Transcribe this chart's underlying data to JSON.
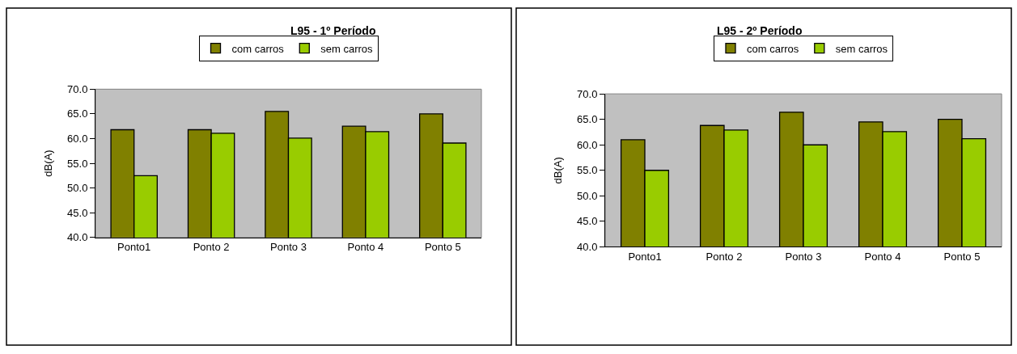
{
  "chart_data": [
    {
      "type": "bar",
      "title": "L95 - 1º Período",
      "ylabel": "dB(A)",
      "categories": [
        "Ponto1",
        "Ponto 2",
        "Ponto 3",
        "Ponto 4",
        "Ponto 5"
      ],
      "series": [
        {
          "name": "com carros",
          "color": "#808000",
          "values": [
            61.8,
            61.8,
            65.5,
            62.5,
            65.0
          ]
        },
        {
          "name": "sem carros",
          "color": "#99cc00",
          "values": [
            52.5,
            61.1,
            60.1,
            61.4,
            59.1
          ]
        }
      ],
      "ylim": [
        40,
        70
      ],
      "yticks": [
        {
          "value": 40,
          "label": "40.0"
        },
        {
          "value": 45,
          "label": "45.0"
        },
        {
          "value": 50,
          "label": "50.0"
        },
        {
          "value": 55,
          "label": "55.0"
        },
        {
          "value": 60,
          "label": "60.0"
        },
        {
          "value": 65,
          "label": "65.0"
        },
        {
          "value": 70,
          "label": "70.0"
        }
      ],
      "grid": false,
      "legend": "top"
    },
    {
      "type": "bar",
      "title": "L95 - 2º Período",
      "ylabel": "dB(A)",
      "categories": [
        "Ponto1",
        "Ponto 2",
        "Ponto 3",
        "Ponto 4",
        "Ponto 5"
      ],
      "series": [
        {
          "name": "com carros",
          "color": "#808000",
          "values": [
            61.0,
            63.8,
            66.4,
            64.5,
            65.0
          ]
        },
        {
          "name": "sem carros",
          "color": "#99cc00",
          "values": [
            55.0,
            62.9,
            60.0,
            62.6,
            61.2
          ]
        }
      ],
      "ylim": [
        40,
        70
      ],
      "yticks": [
        {
          "value": 40,
          "label": "40.0"
        },
        {
          "value": 45,
          "label": "45.0"
        },
        {
          "value": 50,
          "label": "50.0"
        },
        {
          "value": 55,
          "label": "55.0"
        },
        {
          "value": 60,
          "label": "60.0"
        },
        {
          "value": 65,
          "label": "65.0"
        },
        {
          "value": 70,
          "label": "70.0"
        }
      ],
      "grid": false,
      "legend": "top"
    }
  ]
}
